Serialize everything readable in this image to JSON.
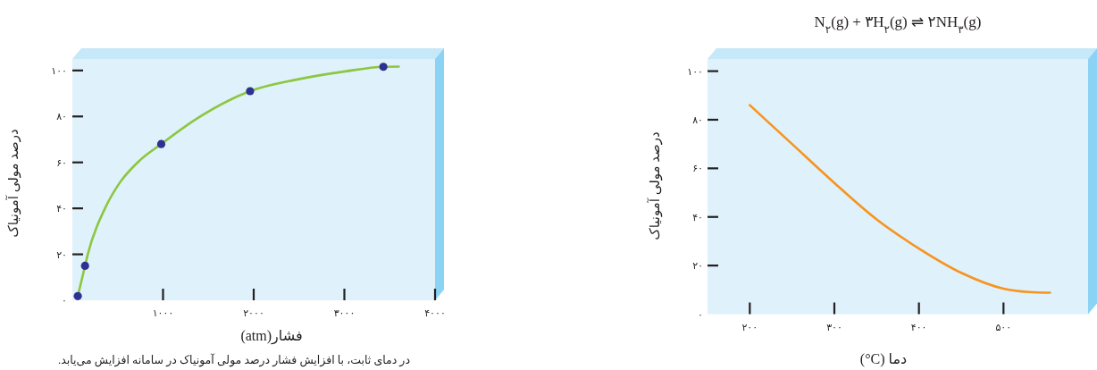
{
  "chart_data": [
    {
      "type": "line",
      "xlabel": "فشار(atm)",
      "ylabel": "درصد مولی آمونیاک",
      "annotations": [
        "در دمای ثابت، با افزایش فشار درصد مولی آمونیاک در سامانه افزایش می‌یابد."
      ],
      "xlim": [
        0,
        4000
      ],
      "ylim": [
        0,
        105
      ],
      "xticks": [
        {
          "value": 1000,
          "label": "۱۰۰۰"
        },
        {
          "value": 2000,
          "label": "۲۰۰۰"
        },
        {
          "value": 3000,
          "label": "۳۰۰۰"
        },
        {
          "value": 4000,
          "label": "۴۰۰۰"
        }
      ],
      "yticks": [
        {
          "value": 0,
          "label": "۰"
        },
        {
          "value": 20,
          "label": "۲۰"
        },
        {
          "value": 40,
          "label": "۴۰"
        },
        {
          "value": 60,
          "label": "۶۰"
        },
        {
          "value": 80,
          "label": "۸۰"
        },
        {
          "value": 100,
          "label": "۱۰۰"
        }
      ],
      "series": [
        {
          "color": "#8dc63f",
          "x": [
            60,
            140,
            170,
            360,
            520,
            720,
            980,
            1390,
            1960,
            2470,
            3010,
            3430,
            3600
          ],
          "values": [
            1.8,
            15,
            20,
            40,
            51,
            60,
            68,
            79.5,
            91,
            96,
            99.6,
            101.6,
            101.7
          ]
        },
        {
          "type": "scatter",
          "color": "#2e3192",
          "marker": "circle",
          "x": [
            60,
            140,
            980,
            1960,
            3430
          ],
          "values": [
            1.8,
            15,
            68,
            91,
            101.6
          ]
        }
      ]
    },
    {
      "type": "line",
      "title": "N$_{۲}$(g) + ۳H$_{۲}$(g) ⇌ ۲NH$_{۳}$(g)",
      "xlabel": "دما (°C)",
      "ylabel": "درصد مولی آمونیاک",
      "xlim": [
        150,
        600
      ],
      "ylim": [
        0,
        105
      ],
      "xticks": [
        {
          "value": 200,
          "label": "۲۰۰"
        },
        {
          "value": 300,
          "label": "۳۰۰"
        },
        {
          "value": 400,
          "label": "۴۰۰"
        },
        {
          "value": 500,
          "label": "۵۰۰"
        }
      ],
      "yticks": [
        {
          "value": 0,
          "label": "۰"
        },
        {
          "value": 20,
          "label": "۲۰"
        },
        {
          "value": 40,
          "label": "۴۰"
        },
        {
          "value": 60,
          "label": "۶۰"
        },
        {
          "value": 80,
          "label": "۸۰"
        },
        {
          "value": 100,
          "label": "۱۰۰"
        }
      ],
      "series": [
        {
          "color": "#f7941d",
          "x": [
            200,
            250,
            300,
            350,
            400,
            450,
            500,
            530,
            555
          ],
          "values": [
            86,
            70,
            54,
            39,
            27,
            17,
            10.5,
            9.1,
            8.8
          ]
        }
      ]
    }
  ]
}
